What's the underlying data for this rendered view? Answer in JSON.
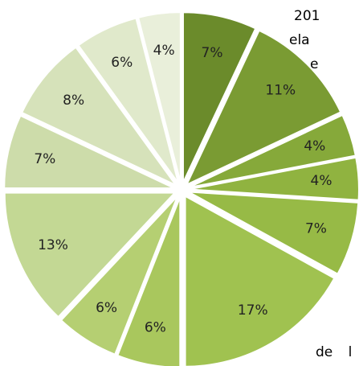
{
  "chart_data": {
    "type": "pie",
    "values": [
      7,
      11,
      4,
      4,
      7,
      17,
      6,
      6,
      13,
      7,
      8,
      6,
      4
    ],
    "value_labels": [
      "7%",
      "11%",
      "4%",
      "4%",
      "7%",
      "17%",
      "6%",
      "6%",
      "13%",
      "7%",
      "8%",
      "6%",
      "4%"
    ],
    "colors": [
      "#6b8b2b",
      "#7a9b33",
      "#86a93a",
      "#90b340",
      "#97ba46",
      "#a0c250",
      "#a9c75d",
      "#b5cf72",
      "#c3d894",
      "#cddcaa",
      "#d6e2ba",
      "#e0e9cb",
      "#e9efda"
    ]
  },
  "text_fragments": [
    "201",
    "ela",
    "e",
    "de l"
  ]
}
